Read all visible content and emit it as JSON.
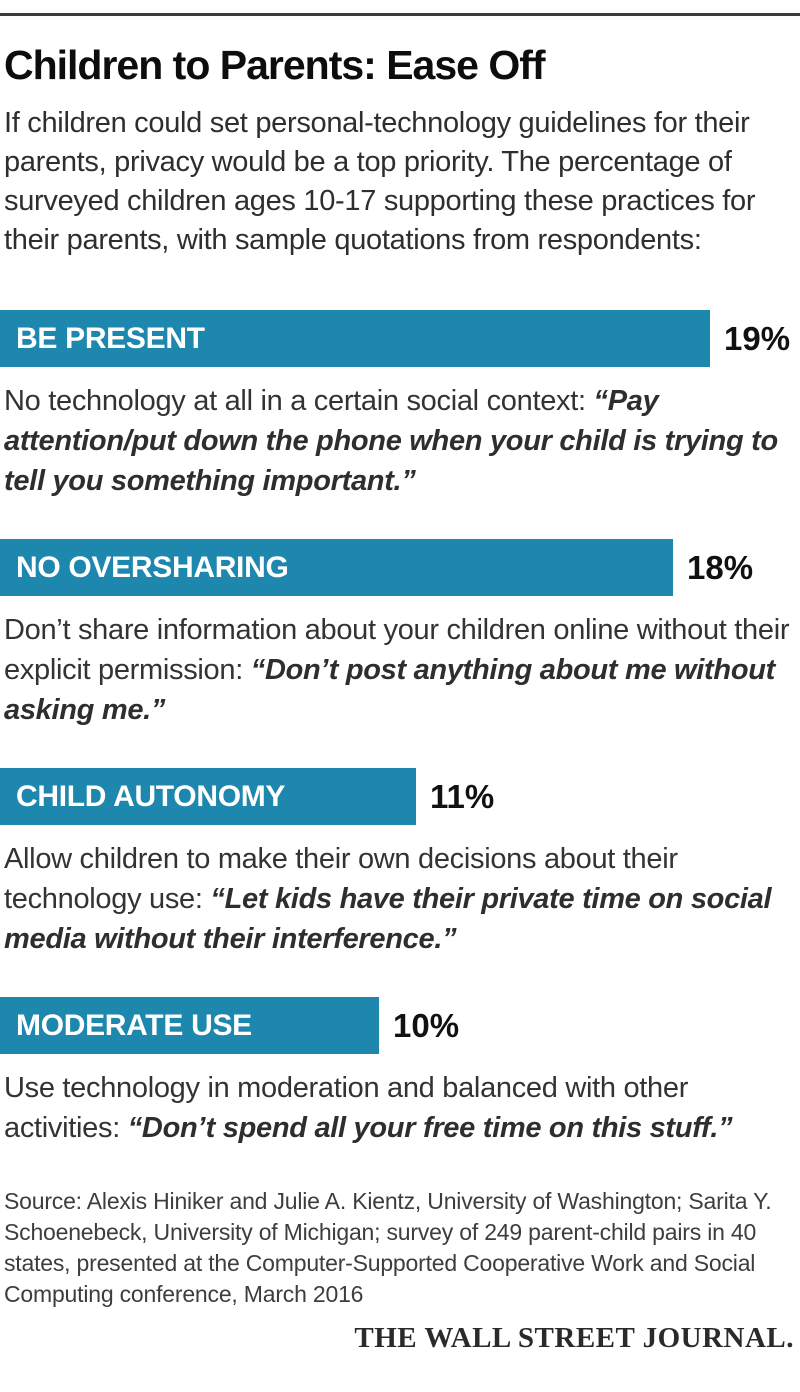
{
  "chart_data": {
    "type": "bar",
    "orientation": "horizontal",
    "title": "Children to Parents: Ease Off",
    "subtitle": "If children could set personal-technology guidelines for their parents, privacy would be a top priority. The percentage of surveyed children ages 10-17 supporting these practices for their parents, with sample quotations from respondents:",
    "categories": [
      "BE PRESENT",
      "NO OVERSHARING",
      "CHILD AUTONOMY",
      "MODERATE USE"
    ],
    "values": [
      19,
      18,
      11,
      10
    ],
    "value_labels": [
      "19%",
      "18%",
      "11%",
      "10%"
    ],
    "unit": "percent of surveyed children ages 10-17",
    "xlim": [
      0,
      21
    ],
    "grid": false,
    "legend": "none",
    "bar_color": "#1e87ad",
    "annotations": [
      "No technology at all in a certain social context: “Pay attention/put down the phone when your child is trying to tell you something important.”",
      "Don’t share information about your children online without their explicit permission: “Don’t post anything about me without asking me.”",
      "Allow children to make their own decisions about their technology use: “Let kids have their private time on social media without their interference.”",
      "Use technology in moderation and balanced with other activities: “Don’t spend all your free time on this stuff.”"
    ]
  },
  "header": {
    "title": "Children to Parents: Ease Off",
    "intro": "If children could set personal-technology guidelines for their parents, privacy would be a top priority. The percentage of surveyed children ages 10-17 supporting these practices for their parents, with sample quotations from respondents:"
  },
  "sections": [
    {
      "label": "BE PRESENT",
      "value_label": "19%",
      "description": "No technology at all in a certain social context:",
      "quote": "“Pay attention/put down the phone when your child is trying to tell you something important.”"
    },
    {
      "label": "NO OVERSHARING",
      "value_label": "18%",
      "description": "Don’t share information about your children online without their explicit permission:",
      "quote": "“Don’t post anything about me without asking me.”"
    },
    {
      "label": "CHILD AUTONOMY",
      "value_label": "11%",
      "description": "Allow children to make their own decisions about their technology use:",
      "quote": "“Let kids have their private time on social media without their interference.”"
    },
    {
      "label": "MODERATE USE",
      "value_label": "10%",
      "description": "Use technology in moderation and balanced with other activities:",
      "quote": "“Don’t spend all your free time on this stuff.”"
    }
  ],
  "footer": {
    "source": "Source: Alexis Hiniker and Julie A. Kientz, University of Washington; Sarita Y. Schoenebeck, University of Michigan; survey of 249 parent-child pairs in 40 states, presented at the Computer-Supported Cooperative Work and Social Computing conference, March 2016",
    "brand": "THE WALL STREET JOURNAL."
  }
}
